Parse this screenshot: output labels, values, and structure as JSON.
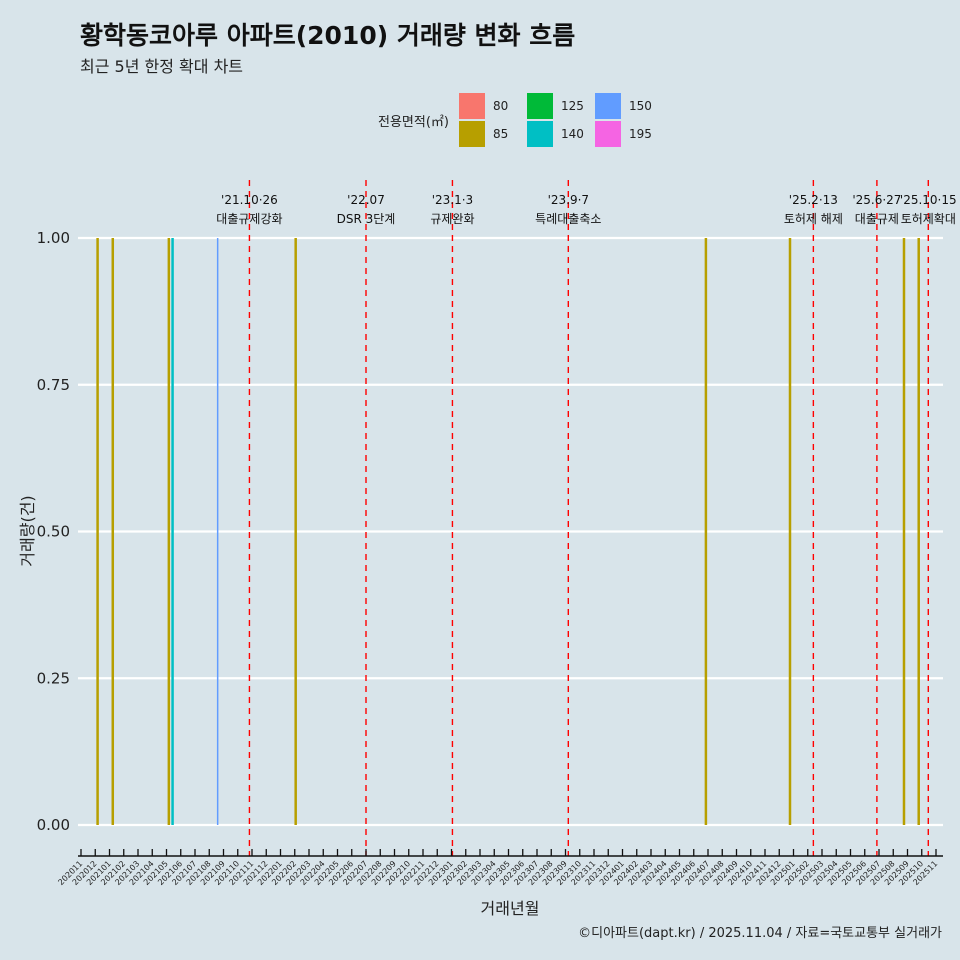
{
  "title": "황학동코아루 아파트(2010) 거래량 변화 흐름",
  "subtitle": "최근 5년 한정 확대 차트",
  "footer": "©디아파트(dapt.kr) / 2025.11.04 / 자료=국토교통부 실거래가",
  "chart_data": {
    "type": "bar",
    "xlabel": "거래년월",
    "ylabel": "거래량(건)",
    "ylim": [
      0,
      1
    ],
    "yticks": [
      "0.00",
      "0.25",
      "0.50",
      "0.75",
      "1.00"
    ],
    "x_months": [
      "202011",
      "202012",
      "202101",
      "202102",
      "202103",
      "202104",
      "202105",
      "202106",
      "202107",
      "202108",
      "202109",
      "202110",
      "202111",
      "202112",
      "202201",
      "202202",
      "202203",
      "202204",
      "202205",
      "202206",
      "202207",
      "202208",
      "202209",
      "202210",
      "202211",
      "202212",
      "202301",
      "202302",
      "202303",
      "202304",
      "202305",
      "202306",
      "202307",
      "202308",
      "202309",
      "202310",
      "202311",
      "202312",
      "202401",
      "202402",
      "202403",
      "202404",
      "202405",
      "202406",
      "202407",
      "202408",
      "202409",
      "202410",
      "202411",
      "202412",
      "202501",
      "202502",
      "202503",
      "202504",
      "202505",
      "202506",
      "202507",
      "202508",
      "202509",
      "202510",
      "202511"
    ],
    "legend": {
      "title": "전용면적(㎡)",
      "placement": "top",
      "entries": [
        {
          "label": "80",
          "color": "#F8766D"
        },
        {
          "label": "85",
          "color": "#B79F00"
        },
        {
          "label": "125",
          "color": "#00BA38"
        },
        {
          "label": "140",
          "color": "#00BFC4"
        },
        {
          "label": "150",
          "color": "#619CFF"
        },
        {
          "label": "195",
          "color": "#F564E3"
        }
      ]
    },
    "bars": [
      {
        "date": "2020-12-06",
        "area": "85",
        "value": 1
      },
      {
        "date": "2021-01-08",
        "area": "85",
        "value": 1
      },
      {
        "date": "2021-05-06",
        "area": "85",
        "value": 1
      },
      {
        "date": "2021-05-14",
        "area": "140",
        "value": 1
      },
      {
        "date": "2021-08-19",
        "area": "150",
        "value": 1
      },
      {
        "date": "2022-02-03",
        "area": "85",
        "value": 1
      },
      {
        "date": "2024-06-27",
        "area": "85",
        "value": 1
      },
      {
        "date": "2024-12-24",
        "area": "85",
        "value": 1
      },
      {
        "date": "2025-08-24",
        "area": "85",
        "value": 1
      },
      {
        "date": "2025-09-25",
        "area": "85",
        "value": 1
      }
    ],
    "events": [
      {
        "date": "2021-10-26",
        "date_label": "'21.10·26",
        "name": "대출규제강화"
      },
      {
        "date": "2022-07-01",
        "date_label": "'22.07",
        "name": "DSR 3단계"
      },
      {
        "date": "2023-01-03",
        "date_label": "'23.1·3",
        "name": "규제완화"
      },
      {
        "date": "2023-09-07",
        "date_label": "'23.9·7",
        "name": "특례대출축소"
      },
      {
        "date": "2025-02-13",
        "date_label": "'25.2·13",
        "name": "토허제 해제"
      },
      {
        "date": "2025-06-27",
        "date_label": "'25.6·27",
        "name": "대출규제"
      },
      {
        "date": "2025-10-15",
        "date_label": "'25.10·15",
        "name": "토허제확대"
      }
    ]
  }
}
